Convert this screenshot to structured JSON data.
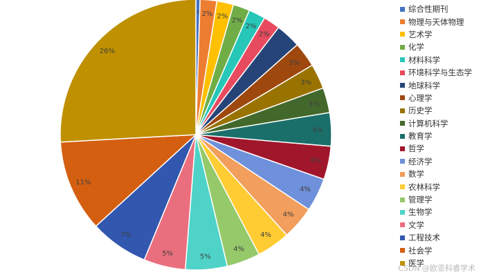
{
  "chart_data": {
    "type": "pie",
    "legend_position": "right",
    "start_angle_deg": 90,
    "direction": "clockwise",
    "slices": [
      {
        "name": "综合性期刊",
        "value": 0.5,
        "label": "0%",
        "color": "#4472C4"
      },
      {
        "name": "物理与天体物理",
        "value": 2,
        "label": "2%",
        "color": "#ED7D31"
      },
      {
        "name": "艺术学",
        "value": 2,
        "label": "2%",
        "color": "#FFC000"
      },
      {
        "name": "化学",
        "value": 2,
        "label": "2%",
        "color": "#70AD47"
      },
      {
        "name": "材料科学",
        "value": 2,
        "label": "2%",
        "color": "#26C6B8"
      },
      {
        "name": "环境科学与生态学",
        "value": 2,
        "label": "2%",
        "color": "#E84A5F"
      },
      {
        "name": "地球科学",
        "value": 3,
        "label": "",
        "color": "#264478"
      },
      {
        "name": "心理学",
        "value": 3,
        "label": "3%",
        "color": "#9E480E"
      },
      {
        "name": "历史学",
        "value": 3,
        "label": "3%",
        "color": "#997300"
      },
      {
        "name": "计算机科学",
        "value": 3,
        "label": "3%",
        "color": "#43682B"
      },
      {
        "name": "教育学",
        "value": 4,
        "label": "4%",
        "color": "#1B6F6A"
      },
      {
        "name": "哲学",
        "value": 4,
        "label": "4%",
        "color": "#A0162B"
      },
      {
        "name": "经济学",
        "value": 4,
        "label": "4%",
        "color": "#6F90DA"
      },
      {
        "name": "数学",
        "value": 4,
        "label": "4%",
        "color": "#F29E5C"
      },
      {
        "name": "农林科学",
        "value": 4,
        "label": "4%",
        "color": "#FFCC33"
      },
      {
        "name": "管理学",
        "value": 4,
        "label": "4%",
        "color": "#95C96A"
      },
      {
        "name": "生物学",
        "value": 5,
        "label": "5%",
        "color": "#4FD3C8"
      },
      {
        "name": "文学",
        "value": 5,
        "label": "5%",
        "color": "#EA6F7E"
      },
      {
        "name": "工程技术",
        "value": 7,
        "label": "7%",
        "color": "#3257AF"
      },
      {
        "name": "社会学",
        "value": 11,
        "label": "11%",
        "color": "#D45F11"
      },
      {
        "name": "医学",
        "value": 26,
        "label": "26%",
        "color": "#BF9000"
      }
    ]
  },
  "watermark": "CSDN @欧亚科睿学术"
}
